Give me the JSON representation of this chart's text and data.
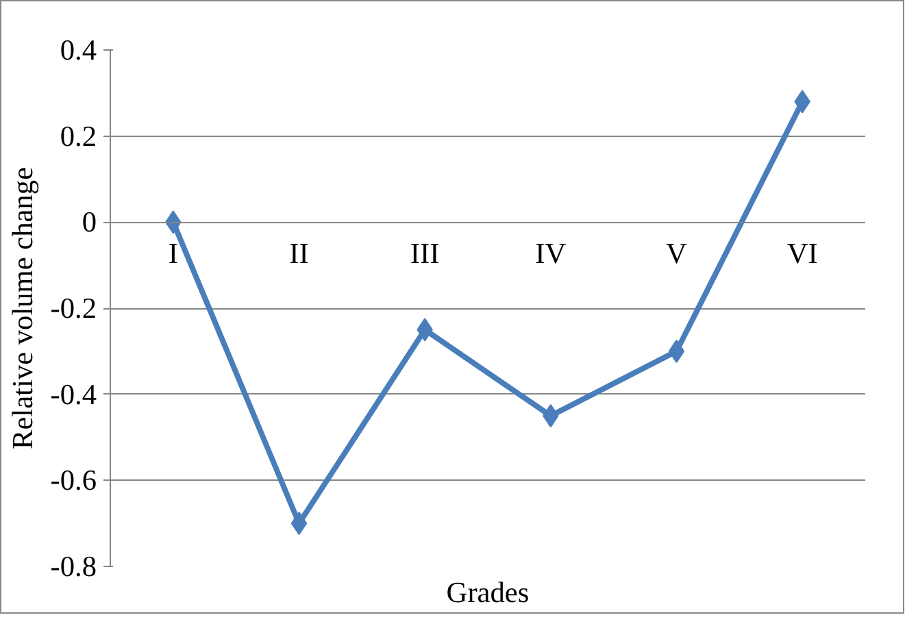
{
  "chart_data": {
    "type": "line",
    "xlabel": "Grades",
    "ylabel": "Relative volume change",
    "categories": [
      "I",
      "II",
      "III",
      "IV",
      "V",
      "VI"
    ],
    "series": [
      {
        "color": "#4a7ebb",
        "values": [
          0,
          -0.7,
          -0.25,
          -0.45,
          -0.3,
          0.28
        ]
      }
    ],
    "ylim": [
      -0.8,
      0.4
    ],
    "yticks": [
      -0.8,
      -0.6,
      -0.4,
      -0.2,
      0,
      0.2,
      0.4
    ],
    "grid": "y",
    "marker": "diamond",
    "line_style": "solid"
  }
}
